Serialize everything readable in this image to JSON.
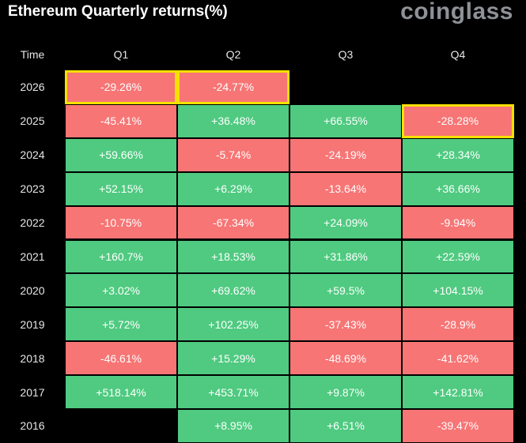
{
  "title": "Ethereum Quarterly returns(%)",
  "brand": "coinglass",
  "colors": {
    "positive": "#4fca80",
    "negative": "#f77575",
    "highlight": "#f5e000",
    "background": "#000000"
  },
  "chart_data": {
    "type": "table",
    "title": "Ethereum Quarterly returns(%)",
    "row_header": "Time",
    "columns": [
      "Q1",
      "Q2",
      "Q3",
      "Q4"
    ],
    "rows": [
      {
        "year": "2026",
        "values": [
          "-29.26%",
          "-24.77%",
          "",
          ""
        ],
        "highlighted": [
          true,
          true,
          false,
          false
        ]
      },
      {
        "year": "2025",
        "values": [
          "-45.41%",
          "+36.48%",
          "+66.55%",
          "-28.28%"
        ],
        "highlighted": [
          false,
          false,
          false,
          true
        ]
      },
      {
        "year": "2024",
        "values": [
          "+59.66%",
          "-5.74%",
          "-24.19%",
          "+28.34%"
        ],
        "highlighted": [
          false,
          false,
          false,
          false
        ]
      },
      {
        "year": "2023",
        "values": [
          "+52.15%",
          "+6.29%",
          "-13.64%",
          "+36.66%"
        ],
        "highlighted": [
          false,
          false,
          false,
          false
        ]
      },
      {
        "year": "2022",
        "values": [
          "-10.75%",
          "-67.34%",
          "+24.09%",
          "-9.94%"
        ],
        "highlighted": [
          false,
          false,
          false,
          false
        ]
      },
      {
        "year": "2021",
        "values": [
          "+160.7%",
          "+18.53%",
          "+31.86%",
          "+22.59%"
        ],
        "highlighted": [
          false,
          false,
          false,
          false
        ]
      },
      {
        "year": "2020",
        "values": [
          "+3.02%",
          "+69.62%",
          "+59.5%",
          "+104.15%"
        ],
        "highlighted": [
          false,
          false,
          false,
          false
        ]
      },
      {
        "year": "2019",
        "values": [
          "+5.72%",
          "+102.25%",
          "-37.43%",
          "-28.9%"
        ],
        "highlighted": [
          false,
          false,
          false,
          false
        ]
      },
      {
        "year": "2018",
        "values": [
          "-46.61%",
          "+15.29%",
          "-48.69%",
          "-41.62%"
        ],
        "highlighted": [
          false,
          false,
          false,
          false
        ]
      },
      {
        "year": "2017",
        "values": [
          "+518.14%",
          "+453.71%",
          "+9.87%",
          "+142.81%"
        ],
        "highlighted": [
          false,
          false,
          false,
          false
        ]
      },
      {
        "year": "2016",
        "values": [
          "",
          "+8.95%",
          "+6.51%",
          "-39.47%"
        ],
        "highlighted": [
          false,
          false,
          false,
          false
        ]
      }
    ]
  }
}
